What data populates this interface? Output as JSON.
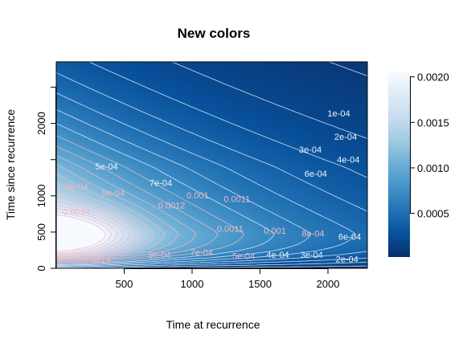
{
  "chart_data": {
    "type": "heatmap",
    "title": "New colors",
    "xlabel": "Time at recurrence",
    "ylabel": "Time since recurrence",
    "xlim": [
      0,
      2290
    ],
    "ylim": [
      0,
      2850
    ],
    "x_ticks": [
      500,
      1000,
      1500,
      2000
    ],
    "x_tick_labels": [
      "500",
      "1000",
      "1500",
      "2000"
    ],
    "y_ticks": [
      0,
      500,
      1000,
      1500,
      2000,
      2500
    ],
    "y_tick_labels": [
      "0",
      "500",
      "1000",
      "",
      "2000",
      ""
    ],
    "colorbar": {
      "min": 2e-05,
      "max": 0.00205,
      "ticks": [
        0.0005,
        0.001,
        0.0015,
        0.002
      ],
      "tick_labels": [
        "0.0005",
        "0.0010",
        "0.0015",
        "0.0020"
      ],
      "colors": [
        "#08306b",
        "#08519c",
        "#2171b5",
        "#4292c6",
        "#6baed6",
        "#9ecae1",
        "#c6dbef",
        "#deebf7",
        "#f7fbff"
      ]
    },
    "contour_line_colors": {
      "low": "#e6eef7",
      "high": "#f2b8c6"
    },
    "contour_labels": [
      {
        "text": "1e-04",
        "x": 2080,
        "y": 2140,
        "tone": "light"
      },
      {
        "text": "2e-04",
        "x": 2130,
        "y": 1820,
        "tone": "light"
      },
      {
        "text": "3e-04",
        "x": 1870,
        "y": 1640,
        "tone": "light"
      },
      {
        "text": "4e-04",
        "x": 2150,
        "y": 1500,
        "tone": "light"
      },
      {
        "text": "5e-04",
        "x": 370,
        "y": 1410,
        "tone": "light"
      },
      {
        "text": "6e-04",
        "x": 1910,
        "y": 1310,
        "tone": "light"
      },
      {
        "text": "7e-04",
        "x": 770,
        "y": 1180,
        "tone": "light"
      },
      {
        "text": "8e-04",
        "x": 150,
        "y": 1130,
        "tone": "pink"
      },
      {
        "text": "9e-04",
        "x": 420,
        "y": 1040,
        "tone": "pink"
      },
      {
        "text": "0.001",
        "x": 1040,
        "y": 1010,
        "tone": "pink"
      },
      {
        "text": "0.0011",
        "x": 1330,
        "y": 960,
        "tone": "pink"
      },
      {
        "text": "0.0012",
        "x": 850,
        "y": 870,
        "tone": "pink"
      },
      {
        "text": "0.0014",
        "x": 150,
        "y": 780,
        "tone": "pink"
      },
      {
        "text": "0.0011",
        "x": 1280,
        "y": 550,
        "tone": "pink"
      },
      {
        "text": "0.001",
        "x": 1610,
        "y": 520,
        "tone": "pink"
      },
      {
        "text": "8e-04",
        "x": 1890,
        "y": 480,
        "tone": "pink"
      },
      {
        "text": "6e-04",
        "x": 2160,
        "y": 440,
        "tone": "light"
      },
      {
        "text": "9e-04",
        "x": 760,
        "y": 190,
        "tone": "pink"
      },
      {
        "text": "7e-04",
        "x": 1070,
        "y": 220,
        "tone": "pink"
      },
      {
        "text": "5e-04",
        "x": 1380,
        "y": 170,
        "tone": "pink"
      },
      {
        "text": "4e-04",
        "x": 1630,
        "y": 190,
        "tone": "light"
      },
      {
        "text": "3e-04",
        "x": 1880,
        "y": 190,
        "tone": "light"
      },
      {
        "text": "2e-04",
        "x": 2140,
        "y": 130,
        "tone": "light"
      },
      {
        "text": "0.0013",
        "x": 300,
        "y": 120,
        "tone": "pink"
      }
    ]
  }
}
